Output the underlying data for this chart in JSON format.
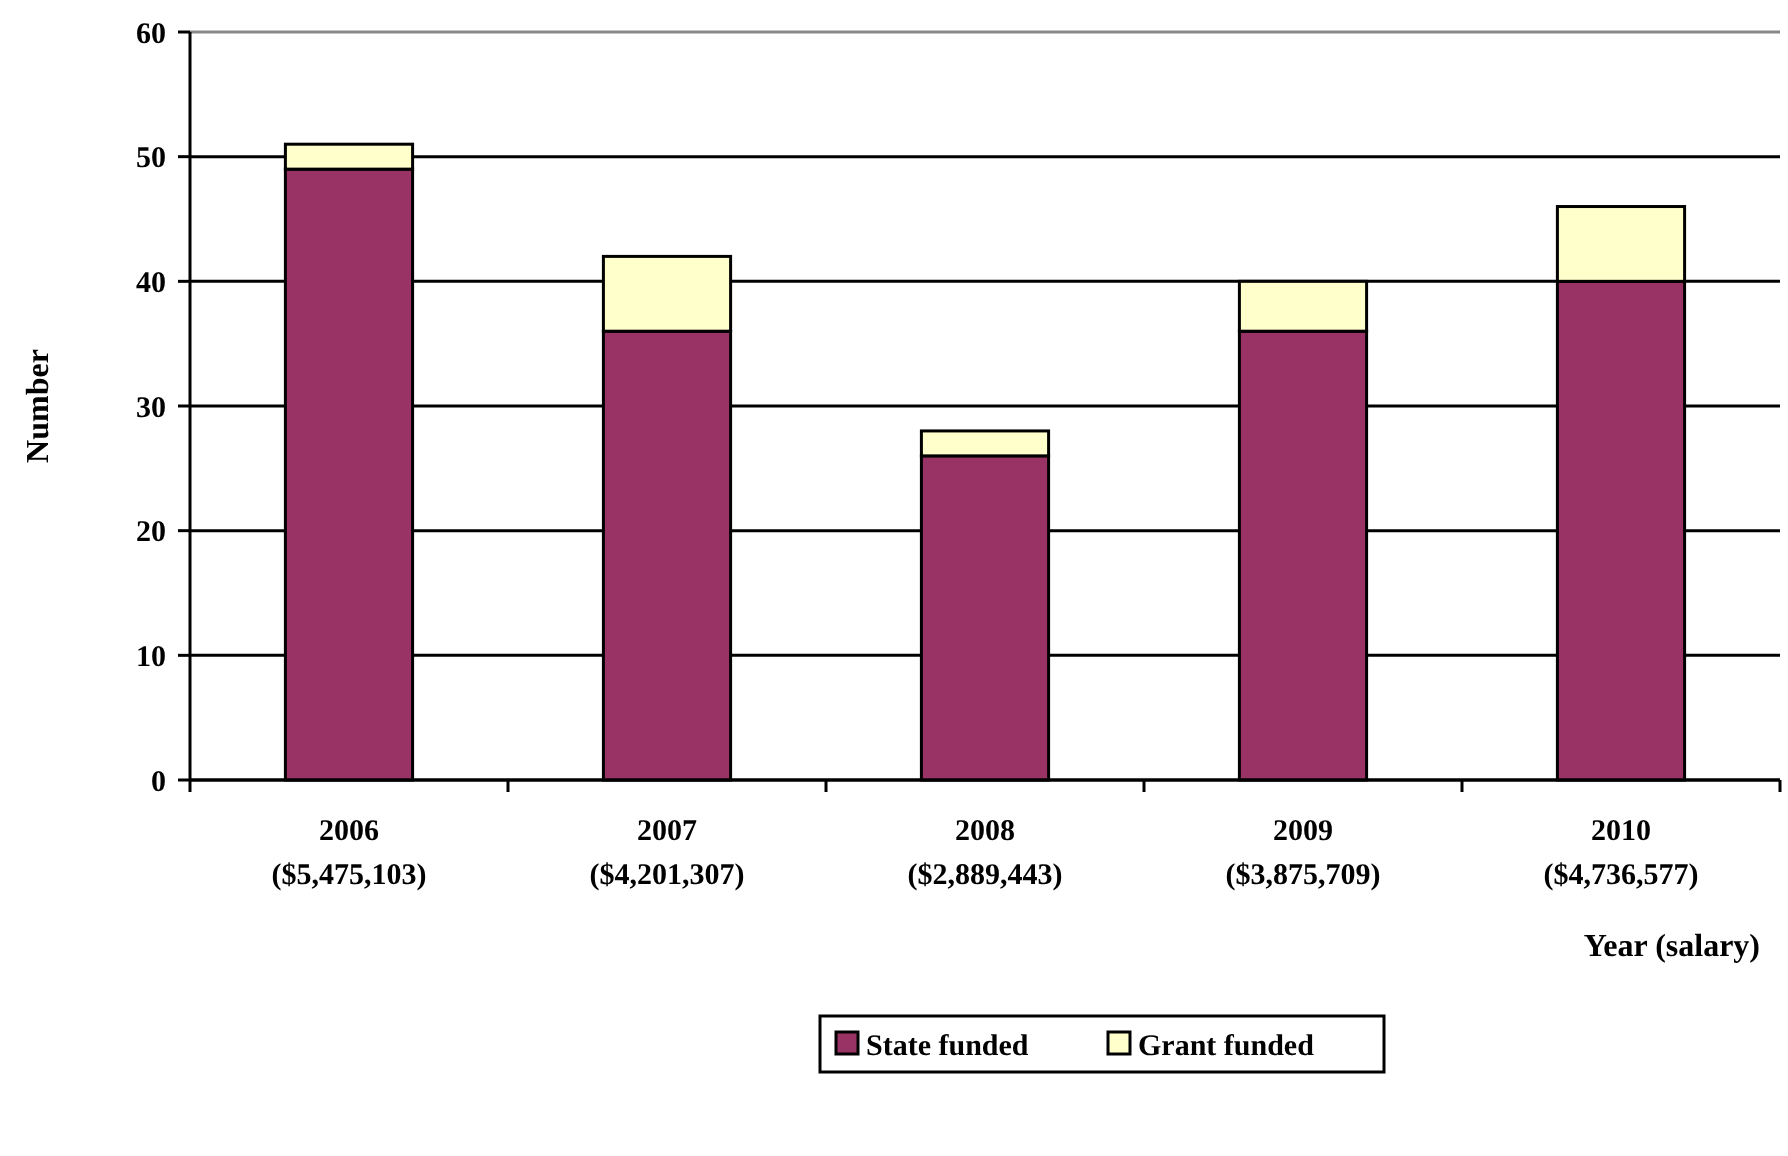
{
  "chart_data": {
    "type": "bar",
    "stacked": true,
    "xlabel": "Year (salary)",
    "ylabel": "Number",
    "categories": [
      "2006\n($5,475,103)",
      "2007\n($4,201,307)",
      "2008\n($2,889,443)",
      "2009\n($3,875,709)",
      "2010\n($4,736,577)"
    ],
    "series": [
      {
        "name": "State funded",
        "color": "#993366",
        "values": [
          49,
          36,
          26,
          36,
          40
        ]
      },
      {
        "name": "Grant funded",
        "color": "#ffffcc",
        "values": [
          2,
          6,
          2,
          4,
          6
        ]
      }
    ],
    "ylim": [
      0,
      60
    ],
    "yticks": [
      0,
      10,
      20,
      30,
      40,
      50,
      60
    ],
    "grid": "y",
    "legend": "bottom"
  }
}
